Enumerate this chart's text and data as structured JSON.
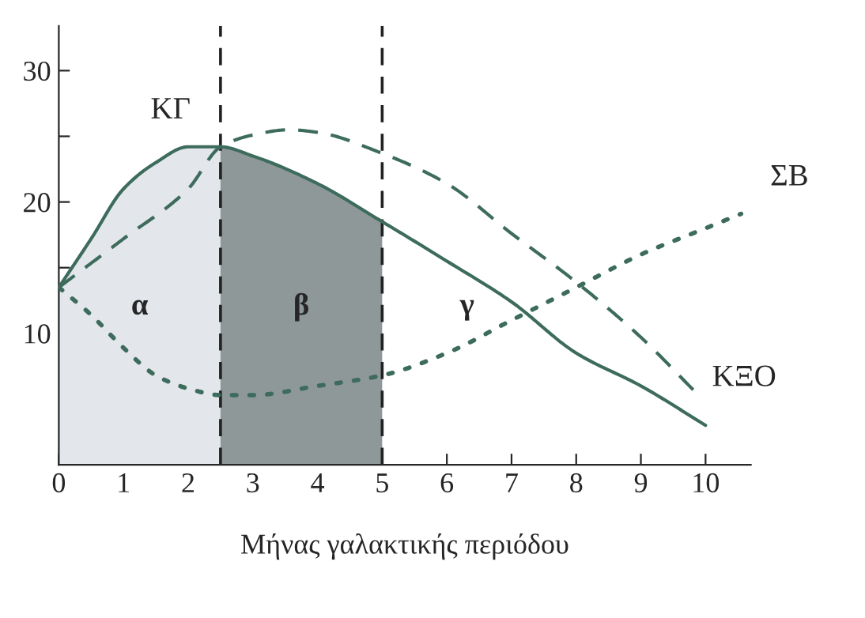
{
  "chart_data": {
    "type": "line",
    "xlabel": "Μήνας γαλακτικής περιόδου",
    "xlim": [
      0,
      10.7
    ],
    "xticks": [
      0,
      1,
      2,
      3,
      4,
      5,
      6,
      7,
      8,
      9,
      10
    ],
    "ylim": [
      0,
      33.4
    ],
    "yticks": [
      {
        "value": 5,
        "label": null
      },
      10,
      {
        "value": 15,
        "label": null
      },
      20,
      {
        "value": 25,
        "label": null
      },
      30
    ],
    "series": [
      {
        "name": "ΚΓ",
        "color": "#3d6b5c",
        "line_style": "solid",
        "x": [
          0,
          0.5,
          1,
          1.5,
          2,
          2.5,
          3,
          4,
          5,
          6,
          7,
          8,
          9,
          10
        ],
        "values": [
          13.5,
          17.2,
          21,
          23,
          24.2,
          24.2,
          23.5,
          21.4,
          18.5,
          15.5,
          12.4,
          8.5,
          6,
          3
        ]
      },
      {
        "name": "ΚΞΟ",
        "color": "#3d6b5c",
        "line_style": "dashed",
        "x": [
          0,
          1,
          2,
          2.5,
          3,
          3.56,
          4,
          5,
          6,
          7,
          8,
          9,
          9.85
        ],
        "values": [
          13.5,
          17.2,
          21,
          24.2,
          25.1,
          25.5,
          25.3,
          23.7,
          21.4,
          17.6,
          13.9,
          9.7,
          5.5
        ]
      },
      {
        "name": "ΣΒ",
        "color": "#3d6b5c",
        "line_style": "dotted",
        "x": [
          0,
          0.5,
          1,
          1.5,
          2,
          2.5,
          3,
          4,
          5,
          6,
          7,
          8,
          9,
          10,
          10.55
        ],
        "values": [
          13.5,
          11.4,
          8.9,
          6.8,
          5.8,
          5.3,
          5.3,
          6,
          6.8,
          8.5,
          11,
          13.5,
          16,
          18,
          19.1
        ]
      }
    ],
    "bands": [
      {
        "axis": "x",
        "from": 0,
        "to": 2.5,
        "color": "#e3e6ea",
        "label": "α"
      },
      {
        "axis": "x",
        "from": 2.5,
        "to": 5,
        "color": "#8e9899",
        "label": "β"
      }
    ],
    "annotations": [
      "γ"
    ],
    "ref_lines": [
      {
        "axis": "x",
        "value": 2.5,
        "line_style": "dashed",
        "color": "#222222"
      },
      {
        "axis": "x",
        "value": 5,
        "line_style": "dashed",
        "color": "#222222"
      }
    ]
  }
}
